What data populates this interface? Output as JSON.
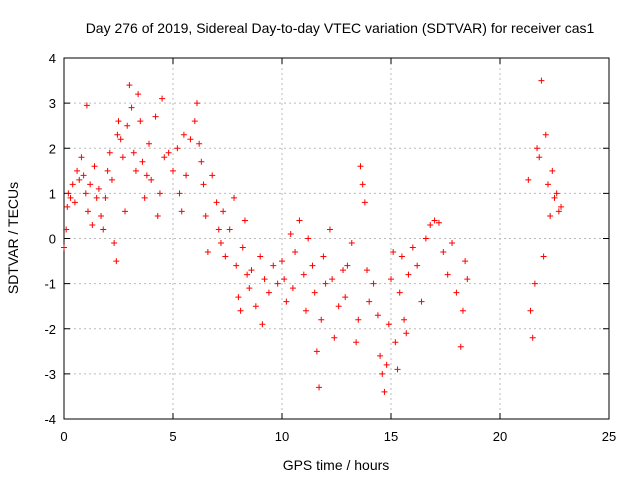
{
  "chart_data": {
    "type": "scatter",
    "title": "Day 276 of 2019, Sidereal Day-to-day VTEC variation (SDTVAR) for receiver cas1",
    "xlabel": "GPS time / hours",
    "ylabel": "SDTVAR / TECUs",
    "xlim": [
      0,
      25
    ],
    "ylim": [
      -4,
      4
    ],
    "xticks": [
      "0",
      "5",
      "10",
      "15",
      "20",
      "25"
    ],
    "yticks": [
      "-4",
      "-3",
      "-2",
      "-1",
      "0",
      "1",
      "2",
      "3",
      "4"
    ],
    "grid": true,
    "marker": "+",
    "color": "#ff0000",
    "series": [
      {
        "name": "SDTVAR",
        "points": [
          [
            0.0,
            -0.2
          ],
          [
            0.1,
            0.2
          ],
          [
            0.15,
            0.7
          ],
          [
            0.2,
            1.0
          ],
          [
            0.3,
            0.9
          ],
          [
            0.4,
            1.2
          ],
          [
            0.5,
            0.8
          ],
          [
            0.6,
            1.5
          ],
          [
            0.7,
            1.3
          ],
          [
            0.8,
            1.8
          ],
          [
            0.9,
            1.4
          ],
          [
            1.0,
            1.0
          ],
          [
            1.05,
            2.95
          ],
          [
            1.1,
            0.6
          ],
          [
            1.2,
            1.2
          ],
          [
            1.3,
            0.3
          ],
          [
            1.4,
            1.6
          ],
          [
            1.5,
            0.9
          ],
          [
            1.6,
            1.1
          ],
          [
            1.7,
            0.5
          ],
          [
            1.8,
            0.2
          ],
          [
            1.9,
            0.9
          ],
          [
            2.0,
            1.5
          ],
          [
            2.1,
            1.9
          ],
          [
            2.2,
            1.3
          ],
          [
            2.3,
            -0.1
          ],
          [
            2.4,
            -0.5
          ],
          [
            2.45,
            2.3
          ],
          [
            2.5,
            2.6
          ],
          [
            2.6,
            2.2
          ],
          [
            2.7,
            1.8
          ],
          [
            2.8,
            0.6
          ],
          [
            2.9,
            2.5
          ],
          [
            3.0,
            3.4
          ],
          [
            3.1,
            2.9
          ],
          [
            3.2,
            1.9
          ],
          [
            3.3,
            1.5
          ],
          [
            3.4,
            3.2
          ],
          [
            3.5,
            2.6
          ],
          [
            3.6,
            1.7
          ],
          [
            3.7,
            0.9
          ],
          [
            3.8,
            1.4
          ],
          [
            3.9,
            2.1
          ],
          [
            4.0,
            1.3
          ],
          [
            4.2,
            2.7
          ],
          [
            4.3,
            0.5
          ],
          [
            4.4,
            1.0
          ],
          [
            4.5,
            3.1
          ],
          [
            4.6,
            1.8
          ],
          [
            4.8,
            1.9
          ],
          [
            5.0,
            1.5
          ],
          [
            5.2,
            2.0
          ],
          [
            5.3,
            1.0
          ],
          [
            5.4,
            0.6
          ],
          [
            5.5,
            2.3
          ],
          [
            5.6,
            1.4
          ],
          [
            5.8,
            2.2
          ],
          [
            6.0,
            2.6
          ],
          [
            6.1,
            3.0
          ],
          [
            6.2,
            2.1
          ],
          [
            6.3,
            1.7
          ],
          [
            6.4,
            1.2
          ],
          [
            6.5,
            0.5
          ],
          [
            6.6,
            -0.3
          ],
          [
            6.8,
            1.4
          ],
          [
            7.0,
            0.8
          ],
          [
            7.1,
            0.2
          ],
          [
            7.2,
            -0.1
          ],
          [
            7.3,
            0.6
          ],
          [
            7.4,
            -0.4
          ],
          [
            7.6,
            0.2
          ],
          [
            7.8,
            0.9
          ],
          [
            7.9,
            -0.6
          ],
          [
            8.0,
            -1.3
          ],
          [
            8.1,
            -1.6
          ],
          [
            8.2,
            -0.2
          ],
          [
            8.3,
            0.4
          ],
          [
            8.4,
            -0.8
          ],
          [
            8.5,
            -1.1
          ],
          [
            8.6,
            -0.7
          ],
          [
            8.8,
            -1.5
          ],
          [
            9.0,
            -0.4
          ],
          [
            9.1,
            -1.9
          ],
          [
            9.2,
            -0.9
          ],
          [
            9.4,
            -1.2
          ],
          [
            9.6,
            -0.6
          ],
          [
            9.8,
            -1.0
          ],
          [
            10.0,
            -0.5
          ],
          [
            10.1,
            -0.9
          ],
          [
            10.2,
            -1.4
          ],
          [
            10.4,
            0.1
          ],
          [
            10.5,
            -1.1
          ],
          [
            10.6,
            -0.3
          ],
          [
            10.8,
            0.4
          ],
          [
            11.0,
            -0.8
          ],
          [
            11.1,
            -1.6
          ],
          [
            11.2,
            0.0
          ],
          [
            11.4,
            -0.6
          ],
          [
            11.5,
            -1.2
          ],
          [
            11.6,
            -2.5
          ],
          [
            11.7,
            -3.3
          ],
          [
            11.8,
            -1.8
          ],
          [
            11.9,
            -0.4
          ],
          [
            12.0,
            -1.0
          ],
          [
            12.2,
            0.2
          ],
          [
            12.3,
            -0.9
          ],
          [
            12.4,
            -2.2
          ],
          [
            12.6,
            -1.5
          ],
          [
            12.8,
            -0.7
          ],
          [
            12.9,
            -1.3
          ],
          [
            13.0,
            -0.6
          ],
          [
            13.2,
            -0.1
          ],
          [
            13.4,
            -2.3
          ],
          [
            13.5,
            -1.8
          ],
          [
            13.6,
            1.6
          ],
          [
            13.7,
            1.2
          ],
          [
            13.8,
            0.8
          ],
          [
            13.9,
            -0.7
          ],
          [
            14.0,
            -1.4
          ],
          [
            14.2,
            -1.0
          ],
          [
            14.4,
            -1.7
          ],
          [
            14.5,
            -2.6
          ],
          [
            14.6,
            -3.0
          ],
          [
            14.7,
            -3.4
          ],
          [
            14.8,
            -2.8
          ],
          [
            14.9,
            -1.9
          ],
          [
            15.0,
            -0.9
          ],
          [
            15.1,
            -0.3
          ],
          [
            15.2,
            -2.3
          ],
          [
            15.3,
            -2.9
          ],
          [
            15.4,
            -1.2
          ],
          [
            15.5,
            -0.4
          ],
          [
            15.6,
            -1.8
          ],
          [
            15.7,
            -2.1
          ],
          [
            15.8,
            -0.8
          ],
          [
            16.0,
            -0.2
          ],
          [
            16.2,
            -0.6
          ],
          [
            16.4,
            -1.4
          ],
          [
            16.6,
            0.0
          ],
          [
            16.8,
            0.3
          ],
          [
            17.0,
            0.4
          ],
          [
            17.2,
            0.35
          ],
          [
            17.4,
            -0.3
          ],
          [
            17.6,
            -0.8
          ],
          [
            17.8,
            -0.1
          ],
          [
            18.0,
            -1.2
          ],
          [
            18.2,
            -2.4
          ],
          [
            18.3,
            -1.6
          ],
          [
            18.4,
            -0.5
          ],
          [
            18.5,
            -0.9
          ],
          [
            21.3,
            1.3
          ],
          [
            21.4,
            -1.6
          ],
          [
            21.5,
            -2.2
          ],
          [
            21.6,
            -1.0
          ],
          [
            21.7,
            2.0
          ],
          [
            21.8,
            1.8
          ],
          [
            21.9,
            3.5
          ],
          [
            22.0,
            -0.4
          ],
          [
            22.1,
            2.3
          ],
          [
            22.2,
            1.2
          ],
          [
            22.3,
            0.5
          ],
          [
            22.4,
            1.5
          ],
          [
            22.5,
            0.9
          ],
          [
            22.6,
            1.0
          ],
          [
            22.7,
            0.6
          ],
          [
            22.8,
            0.7
          ]
        ]
      }
    ]
  }
}
